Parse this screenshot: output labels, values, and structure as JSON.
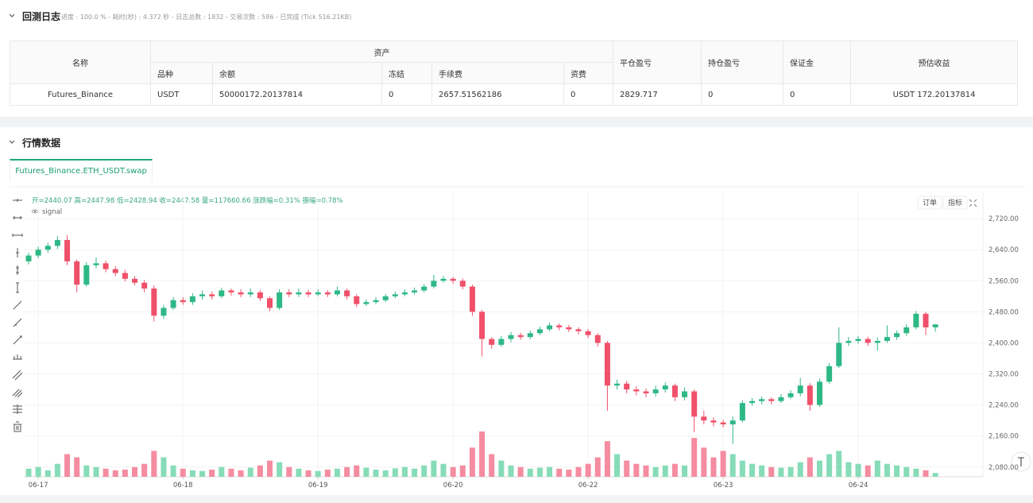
{
  "log_section": {
    "title": "回测日志",
    "stats": "进度 : 100.0 % - 耗时(秒) : 4.372 秒 - 日志总数 : 1832 - 交易次数 : 586 - 已完成 (Tick 516.21KB)"
  },
  "table": {
    "header_top": [
      "名称",
      "资产",
      "平仓盈亏",
      "持仓盈亏",
      "保证金",
      "预估收益"
    ],
    "header_sub": [
      "品种",
      "余额",
      "冻结",
      "手续费",
      "资费"
    ],
    "rows": [
      [
        "Futures_Binance",
        "USDT",
        "50000172.20137814",
        "0",
        "2657.51562186",
        "0",
        "2829.717",
        "0",
        "0",
        "USDT 172.20137814"
      ]
    ]
  },
  "market_section": {
    "title": "行情数据",
    "tab": "Futures_Binance.ETH_USDT.swap"
  },
  "chart_buttons": [
    "订单",
    "指标"
  ],
  "chart_data": {
    "type": "candlestick",
    "info": "开=2440.07 高=2447.98 低=2428.94 收=2447.58 量=117660.66 涨跌幅=0.31% 振幅=0.78%",
    "indicator": "signal",
    "up_color": "#2eb886",
    "down_color": "#f0506a",
    "up_volume_color": "#86dcb8",
    "down_volume_color": "#f58ca0",
    "grid": true,
    "ylim": [
      2055,
      2792
    ],
    "yticks": [
      {
        "value": 2720,
        "label": "2,720.00"
      },
      {
        "value": 2640,
        "label": "2,640.00"
      },
      {
        "value": 2560,
        "label": "2,560.00"
      },
      {
        "value": 2480,
        "label": "2,480.00"
      },
      {
        "value": 2400,
        "label": "2,400.00"
      },
      {
        "value": 2320,
        "label": "2,320.00"
      },
      {
        "value": 2240,
        "label": "2,240.00"
      },
      {
        "value": 2160,
        "label": "2,160.00"
      },
      {
        "value": 2080,
        "label": "2,080.00"
      }
    ],
    "xticks": [
      {
        "value": 1,
        "label": "06-17"
      },
      {
        "value": 16,
        "label": "06-18"
      },
      {
        "value": 30,
        "label": "06-19"
      },
      {
        "value": 44,
        "label": "06-20"
      },
      {
        "value": 58,
        "label": "06-22"
      },
      {
        "value": 72,
        "label": "06-23"
      },
      {
        "value": 86,
        "label": "06-24"
      }
    ],
    "open": [
      2610,
      2625,
      2640,
      2650,
      2665,
      2610,
      2550,
      2600,
      2605,
      2590,
      2580,
      2565,
      2555,
      2540,
      2470,
      2490,
      2510,
      2505,
      2520,
      2525,
      2520,
      2535,
      2530,
      2525,
      2530,
      2515,
      2490,
      2530,
      2525,
      2530,
      2525,
      2530,
      2525,
      2535,
      2520,
      2500,
      2505,
      2510,
      2520,
      2525,
      2530,
      2535,
      2545,
      2560,
      2565,
      2560,
      2545,
      2480,
      2410,
      2395,
      2410,
      2420,
      2415,
      2425,
      2435,
      2445,
      2440,
      2435,
      2430,
      2420,
      2400,
      2290,
      2295,
      2280,
      2275,
      2270,
      2280,
      2290,
      2260,
      2275,
      2210,
      2200,
      2195,
      2190,
      2200,
      2245,
      2250,
      2255,
      2250,
      2260,
      2270,
      2290,
      2240,
      2300,
      2340,
      2400,
      2405,
      2410,
      2400,
      2405,
      2415,
      2425,
      2440,
      2475,
      2440.07
    ],
    "high": [
      2632,
      2648,
      2658,
      2675,
      2678,
      2615,
      2608,
      2620,
      2612,
      2598,
      2588,
      2572,
      2562,
      2548,
      2498,
      2518,
      2518,
      2528,
      2535,
      2532,
      2542,
      2540,
      2538,
      2540,
      2536,
      2520,
      2538,
      2538,
      2540,
      2536,
      2538,
      2536,
      2545,
      2540,
      2525,
      2512,
      2518,
      2526,
      2532,
      2538,
      2542,
      2552,
      2575,
      2572,
      2570,
      2566,
      2550,
      2485,
      2415,
      2418,
      2428,
      2426,
      2432,
      2442,
      2452,
      2450,
      2446,
      2440,
      2436,
      2425,
      2405,
      2305,
      2302,
      2288,
      2282,
      2290,
      2298,
      2295,
      2285,
      2280,
      2225,
      2208,
      2202,
      2210,
      2252,
      2258,
      2262,
      2260,
      2268,
      2278,
      2310,
      2296,
      2308,
      2348,
      2440,
      2415,
      2418,
      2416,
      2414,
      2445,
      2432,
      2448,
      2482,
      2480,
      2447.98
    ],
    "low": [
      2602,
      2618,
      2632,
      2642,
      2600,
      2530,
      2545,
      2592,
      2582,
      2572,
      2558,
      2548,
      2530,
      2455,
      2462,
      2485,
      2498,
      2498,
      2512,
      2512,
      2515,
      2522,
      2518,
      2518,
      2508,
      2482,
      2485,
      2518,
      2518,
      2518,
      2520,
      2518,
      2520,
      2512,
      2492,
      2495,
      2500,
      2505,
      2515,
      2520,
      2525,
      2530,
      2540,
      2555,
      2552,
      2538,
      2470,
      2365,
      2385,
      2390,
      2402,
      2408,
      2410,
      2420,
      2430,
      2432,
      2428,
      2422,
      2412,
      2390,
      2225,
      2280,
      2270,
      2265,
      2260,
      2262,
      2272,
      2250,
      2252,
      2170,
      2190,
      2185,
      2182,
      2140,
      2195,
      2238,
      2242,
      2242,
      2245,
      2255,
      2262,
      2225,
      2235,
      2295,
      2335,
      2392,
      2398,
      2392,
      2380,
      2400,
      2408,
      2418,
      2435,
      2420,
      2428.94
    ],
    "close": [
      2625,
      2640,
      2650,
      2665,
      2610,
      2550,
      2600,
      2605,
      2590,
      2580,
      2565,
      2555,
      2540,
      2470,
      2490,
      2510,
      2505,
      2520,
      2525,
      2520,
      2535,
      2530,
      2525,
      2530,
      2515,
      2490,
      2530,
      2525,
      2530,
      2525,
      2530,
      2525,
      2535,
      2520,
      2500,
      2505,
      2510,
      2520,
      2525,
      2530,
      2535,
      2545,
      2560,
      2565,
      2560,
      2545,
      2480,
      2410,
      2395,
      2410,
      2420,
      2415,
      2425,
      2435,
      2445,
      2440,
      2435,
      2430,
      2420,
      2400,
      2290,
      2295,
      2280,
      2275,
      2270,
      2280,
      2290,
      2260,
      2275,
      2210,
      2200,
      2195,
      2190,
      2200,
      2245,
      2250,
      2255,
      2250,
      2260,
      2270,
      2290,
      2240,
      2300,
      2340,
      2400,
      2405,
      2410,
      2400,
      2405,
      2415,
      2425,
      2440,
      2475,
      2440,
      2447.58
    ],
    "volume": [
      250000,
      300000,
      200000,
      400000,
      700000,
      600000,
      350000,
      300000,
      250000,
      200000,
      220000,
      300000,
      400000,
      800000,
      600000,
      350000,
      250000,
      200000,
      180000,
      220000,
      300000,
      250000,
      200000,
      280000,
      350000,
      500000,
      450000,
      300000,
      250000,
      200000,
      180000,
      220000,
      250000,
      300000,
      350000,
      280000,
      220000,
      200000,
      260000,
      300000,
      250000,
      350000,
      500000,
      400000,
      300000,
      350000,
      900000,
      1400000,
      700000,
      500000,
      350000,
      300000,
      250000,
      280000,
      300000,
      250000,
      220000,
      300000,
      400000,
      600000,
      1100000,
      700000,
      500000,
      400000,
      350000,
      300000,
      350000,
      400000,
      350000,
      1200000,
      900000,
      600000,
      800000,
      700000,
      500000,
      400000,
      350000,
      300000,
      280000,
      300000,
      450000,
      600000,
      500000,
      700000,
      800000,
      450000,
      400000,
      350000,
      500000,
      400000,
      350000,
      300000,
      250000,
      200000,
      117660.66
    ]
  }
}
